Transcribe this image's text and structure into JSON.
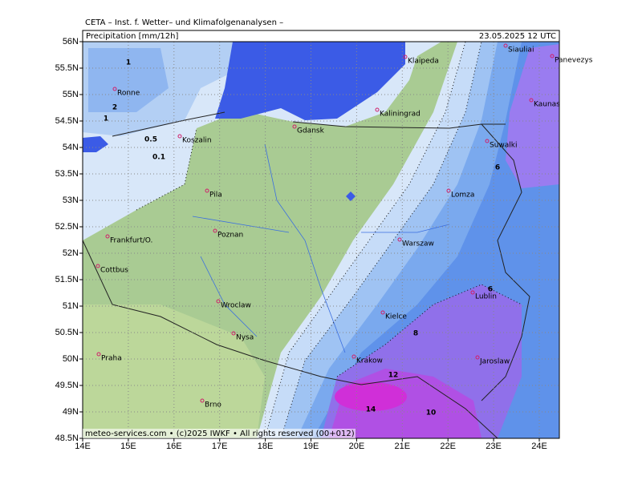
{
  "header": {
    "source": "CETA – Inst. f. Wetter– und Klimafolgenanalysen –",
    "title": "Precipitation [mm/12h]",
    "valid_time": "23.05.2025  12 UTC"
  },
  "map": {
    "lat_labels": [
      "56N",
      "55.5N",
      "55N",
      "54.5N",
      "54N",
      "53.5N",
      "53N",
      "52.5N",
      "52N",
      "51.5N",
      "51N",
      "50.5N",
      "50N",
      "49.5N",
      "49N",
      "48.5N"
    ],
    "lon_labels": [
      "14E",
      "15E",
      "16E",
      "17E",
      "18E",
      "19E",
      "20E",
      "21E",
      "22E",
      "23E",
      "24E"
    ],
    "cities": [
      "Ronne",
      "Koszalin",
      "Pila",
      "Poznan",
      "Frankfurt/O.",
      "Cottbus",
      "Wroclaw",
      "Nysa",
      "Praha",
      "Brno",
      "Gdansk",
      "Kaliningrad",
      "Klaipeda",
      "Siauliai",
      "Panevezys",
      "Kaunas",
      "Suwalki",
      "Lomza",
      "Warszaw",
      "Lublin",
      "Kielce",
      "Krakow",
      "Jaroslaw"
    ],
    "contour_labels": [
      1,
      2,
      1,
      0.5,
      0.1,
      6,
      6,
      8,
      12,
      14,
      10
    ]
  },
  "footer": "meteo-services.com • (c)2025 IWKF • All rights reserved (00+012)"
}
